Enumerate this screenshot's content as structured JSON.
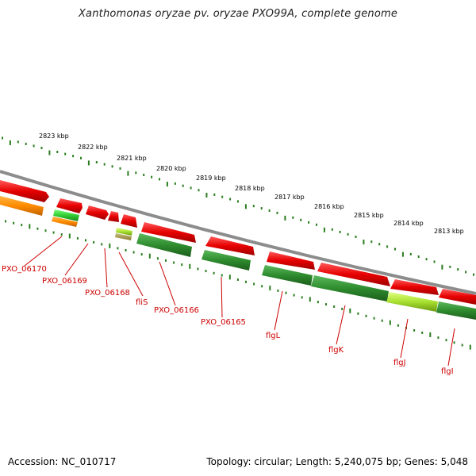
{
  "title": "Xanthomonas oryzae pv. oryzae PXO99A, complete genome",
  "footer": {
    "accession": "Accession: NC_010717",
    "summary": "Topology: circular; Length: 5,240,075 bp; Genes: 5,048"
  },
  "colors": {
    "backbone": "#8c8c8c",
    "tick": "#2a7d1e",
    "label": "#cc0000",
    "forward_gene": "#e60000",
    "reverse_gene": "#2e8b2e"
  },
  "scale_labels": [
    "2823 kbp",
    "2822 kbp",
    "2821 kbp",
    "2820 kbp",
    "2819 kbp",
    "2818 kbp",
    "2817 kbp",
    "2816 kbp",
    "2815 kbp",
    "2814 kbp",
    "2813 kbp"
  ],
  "gene_labels": [
    "PXO_06170",
    "PXO_06169",
    "PXO_06168",
    "fliS",
    "PXO_06166",
    "PXO_06165",
    "flgL",
    "flgK",
    "flgJ",
    "flgI"
  ]
}
